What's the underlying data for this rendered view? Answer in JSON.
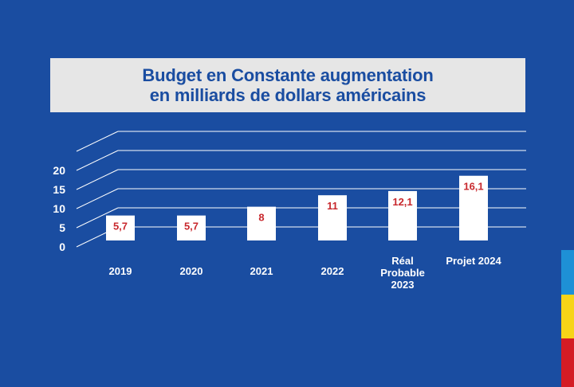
{
  "chart_data": {
    "type": "bar",
    "title_lines": [
      "Budget en Constante augmentation",
      "en milliards de dollars américains"
    ],
    "categories": [
      "2019",
      "2020",
      "2021",
      "2022",
      "Réal Probable 2023",
      "Projet 2024"
    ],
    "category_lines": [
      [
        "2019"
      ],
      [
        "2020"
      ],
      [
        "2021"
      ],
      [
        "2022"
      ],
      [
        "Réal",
        "Probable",
        "2023"
      ],
      [
        "Projet 2024"
      ]
    ],
    "values": [
      5.7,
      5.7,
      8,
      11,
      12.1,
      16.1
    ],
    "value_labels": [
      "5,7",
      "5,7",
      "8",
      "11",
      "12,1",
      "16,1"
    ],
    "y_ticks": [
      "20",
      "15",
      "10",
      "5",
      "0"
    ],
    "ylim": [
      0,
      20
    ],
    "grid": true,
    "legend": "none"
  },
  "colors": {
    "background": "#1a4da1",
    "title_box": "#e6e6e6",
    "title_text": "#1a4da1",
    "bar": "#ffffff",
    "value_label": "#c8282d",
    "axis_text": "#ffffff",
    "flag": [
      "#1e90d6",
      "#f7d417",
      "#d41c24"
    ]
  }
}
